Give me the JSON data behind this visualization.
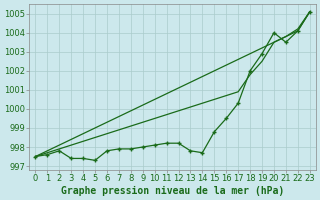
{
  "title": "Graphe pression niveau de la mer (hPa)",
  "bg_color": "#cce8ec",
  "grid_color": "#aacccc",
  "line_color": "#1a6b1a",
  "x_labels": [
    "0",
    "1",
    "2",
    "3",
    "4",
    "5",
    "6",
    "7",
    "8",
    "9",
    "10",
    "11",
    "12",
    "13",
    "14",
    "15",
    "16",
    "17",
    "18",
    "19",
    "20",
    "21",
    "22",
    "23"
  ],
  "ylim": [
    996.8,
    1005.5
  ],
  "yticks": [
    997,
    998,
    999,
    1000,
    1001,
    1002,
    1003,
    1004,
    1005
  ],
  "series_measured": [
    997.5,
    997.6,
    997.8,
    997.4,
    997.4,
    997.3,
    997.8,
    997.9,
    997.9,
    998.0,
    998.1,
    998.2,
    998.2,
    997.8,
    997.7,
    998.8,
    999.5,
    1000.3,
    1002.0,
    1002.9,
    1004.0,
    1003.5,
    1004.1,
    1005.1
  ],
  "series_linear1": [
    997.5,
    997.8,
    998.1,
    998.4,
    998.7,
    999.0,
    999.3,
    999.6,
    999.9,
    1000.2,
    1000.5,
    1000.8,
    1001.1,
    1001.4,
    1001.7,
    1002.0,
    1002.3,
    1002.6,
    1002.9,
    1003.2,
    1003.5,
    1003.8,
    1004.1,
    1005.1
  ],
  "series_linear2": [
    997.5,
    997.7,
    997.9,
    998.1,
    998.3,
    998.5,
    998.7,
    998.9,
    999.1,
    999.3,
    999.5,
    999.7,
    999.9,
    1000.1,
    1000.3,
    1000.5,
    1000.7,
    1000.9,
    1001.8,
    1002.5,
    1003.5,
    1003.8,
    1004.2,
    1005.1
  ],
  "xlabel_fontsize": 6.0,
  "ylabel_fontsize": 6.0,
  "title_fontsize": 7.0
}
